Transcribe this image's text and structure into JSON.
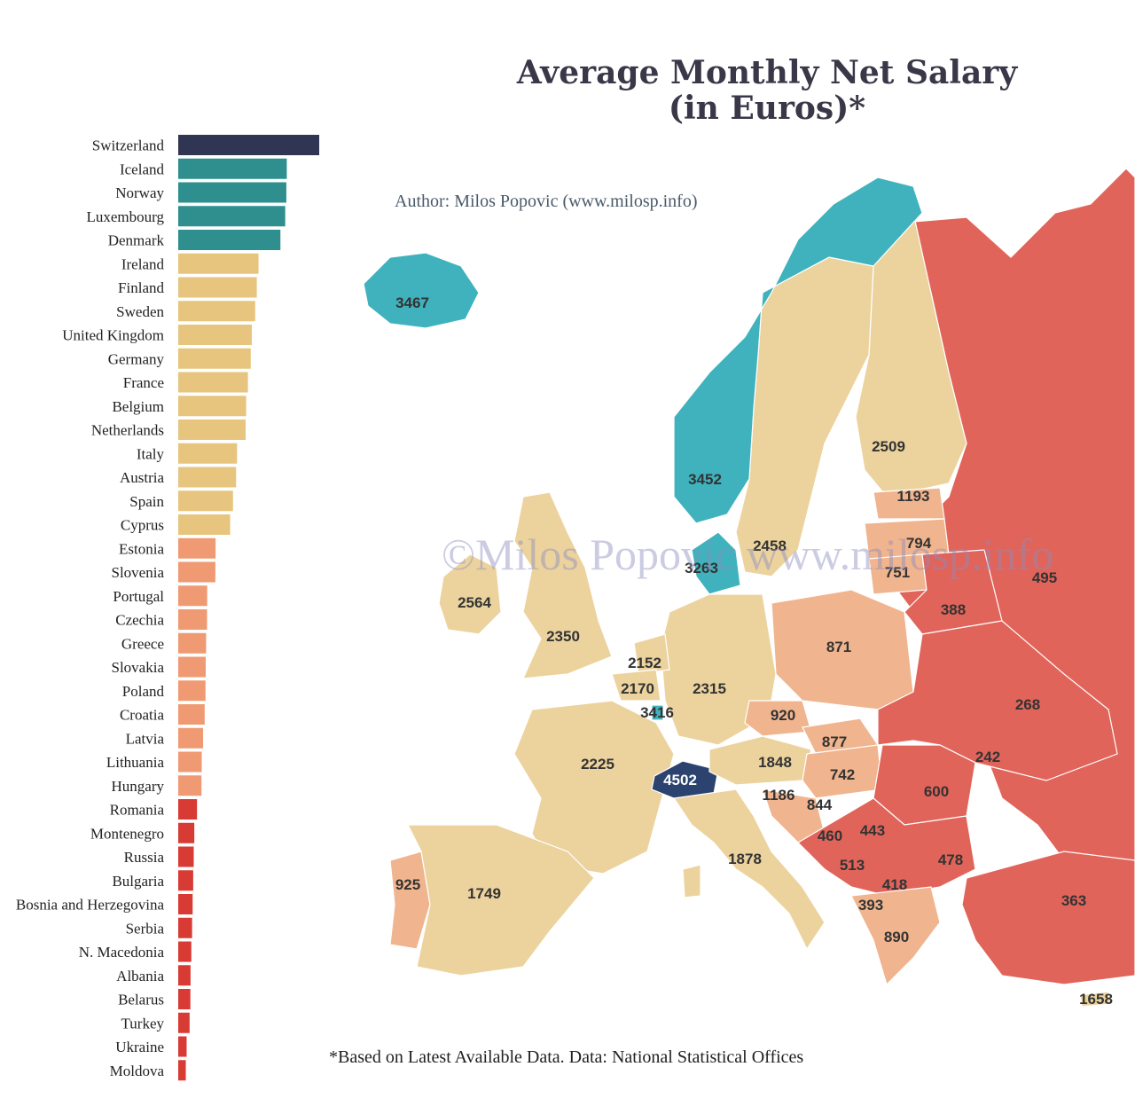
{
  "header": {
    "title_line1": "Average Monthly Net Salary",
    "title_line2": "(in Euros)*",
    "author": "Author: Milos Popovic (www.milosp.info)",
    "watermark": "©Milos Popovic www.milosp.info",
    "footnote": "*Based on Latest Available Data. Data:  National Statistical Offices"
  },
  "colors": {
    "top": "#2f3552",
    "teal": "#2f8f8f",
    "map_teal": "#3fb2bd",
    "tan": "#e7c57e",
    "map_tan": "#ecd39e",
    "salmon": "#ef9a72",
    "map_salmon": "#f0b48e",
    "red": "#d83a34",
    "map_red": "#e1645a",
    "sea": "#ffffff",
    "swiss": "#2c4370"
  },
  "chart_data": [
    {
      "type": "bar",
      "orientation": "horizontal",
      "categories": [
        "Switzerland",
        "Iceland",
        "Norway",
        "Luxembourg",
        "Denmark",
        "Ireland",
        "Finland",
        "Sweden",
        "United Kingdom",
        "Germany",
        "France",
        "Belgium",
        "Netherlands",
        "Italy",
        "Austria",
        "Spain",
        "Cyprus",
        "Estonia",
        "Slovenia",
        "Portugal",
        "Czechia",
        "Greece",
        "Slovakia",
        "Poland",
        "Croatia",
        "Latvia",
        "Lithuania",
        "Hungary",
        "Romania",
        "Montenegro",
        "Russia",
        "Bulgaria",
        "Bosnia and Herzegovina",
        "Serbia",
        "N. Macedonia",
        "Albania",
        "Belarus",
        "Turkey",
        "Ukraine",
        "Moldova"
      ],
      "values": [
        4502,
        3467,
        3452,
        3416,
        3263,
        2564,
        2509,
        2458,
        2350,
        2315,
        2225,
        2170,
        2152,
        1878,
        1848,
        1749,
        1658,
        1193,
        1186,
        925,
        920,
        890,
        877,
        871,
        844,
        794,
        751,
        742,
        600,
        513,
        495,
        478,
        460,
        443,
        418,
        393,
        388,
        363,
        268,
        242
      ],
      "color_groups": [
        "top",
        "teal",
        "teal",
        "teal",
        "teal",
        "tan",
        "tan",
        "tan",
        "tan",
        "tan",
        "tan",
        "tan",
        "tan",
        "tan",
        "tan",
        "tan",
        "tan",
        "salmon",
        "salmon",
        "salmon",
        "salmon",
        "salmon",
        "salmon",
        "salmon",
        "salmon",
        "salmon",
        "salmon",
        "salmon",
        "red",
        "red",
        "red",
        "red",
        "red",
        "red",
        "red",
        "red",
        "red",
        "red",
        "red",
        "red"
      ],
      "xlim": [
        0,
        4502
      ]
    },
    {
      "type": "map",
      "labels": [
        {
          "country": "Iceland",
          "value": "3467",
          "group": "teal"
        },
        {
          "country": "Norway",
          "value": "3452",
          "group": "teal"
        },
        {
          "country": "Finland",
          "value": "2509",
          "group": "tan"
        },
        {
          "country": "Sweden",
          "value": "2458",
          "group": "tan"
        },
        {
          "country": "Denmark",
          "value": "3263",
          "group": "teal"
        },
        {
          "country": "Estonia",
          "value": "1193",
          "group": "salmon"
        },
        {
          "country": "Latvia",
          "value": "794",
          "group": "salmon"
        },
        {
          "country": "Lithuania",
          "value": "751",
          "group": "salmon"
        },
        {
          "country": "Russia",
          "value": "495",
          "group": "red"
        },
        {
          "country": "Belarus",
          "value": "388",
          "group": "red"
        },
        {
          "country": "Ireland",
          "value": "2564",
          "group": "tan"
        },
        {
          "country": "United Kingdom",
          "value": "2350",
          "group": "tan"
        },
        {
          "country": "Netherlands",
          "value": "2152",
          "group": "tan"
        },
        {
          "country": "Belgium",
          "value": "2170",
          "group": "tan"
        },
        {
          "country": "Luxembourg",
          "value": "3416",
          "group": "teal"
        },
        {
          "country": "Germany",
          "value": "2315",
          "group": "tan"
        },
        {
          "country": "Poland",
          "value": "871",
          "group": "salmon"
        },
        {
          "country": "Czechia",
          "value": "920",
          "group": "salmon"
        },
        {
          "country": "Ukraine",
          "value": "268",
          "group": "red"
        },
        {
          "country": "France",
          "value": "2225",
          "group": "tan"
        },
        {
          "country": "Switzerland",
          "value": "4502",
          "group": "top"
        },
        {
          "country": "Austria",
          "value": "1848",
          "group": "tan"
        },
        {
          "country": "Slovakia",
          "value": "877",
          "group": "salmon"
        },
        {
          "country": "Hungary",
          "value": "742",
          "group": "salmon"
        },
        {
          "country": "Moldova",
          "value": "242",
          "group": "red"
        },
        {
          "country": "Slovenia",
          "value": "1186",
          "group": "salmon"
        },
        {
          "country": "Croatia",
          "value": "844",
          "group": "salmon"
        },
        {
          "country": "Romania",
          "value": "600",
          "group": "red"
        },
        {
          "country": "Bosnia and Herzegovina",
          "value": "460",
          "group": "red"
        },
        {
          "country": "Serbia",
          "value": "443",
          "group": "red"
        },
        {
          "country": "Montenegro",
          "value": "513",
          "group": "red"
        },
        {
          "country": "Bulgaria",
          "value": "478",
          "group": "red"
        },
        {
          "country": "N. Macedonia",
          "value": "418",
          "group": "red"
        },
        {
          "country": "Albania",
          "value": "393",
          "group": "red"
        },
        {
          "country": "Italy",
          "value": "1878",
          "group": "tan"
        },
        {
          "country": "Portugal",
          "value": "925",
          "group": "salmon"
        },
        {
          "country": "Spain",
          "value": "1749",
          "group": "tan"
        },
        {
          "country": "Greece",
          "value": "890",
          "group": "salmon"
        },
        {
          "country": "Turkey",
          "value": "363",
          "group": "red"
        },
        {
          "country": "Cyprus",
          "value": "1658",
          "group": "tan"
        }
      ]
    }
  ]
}
